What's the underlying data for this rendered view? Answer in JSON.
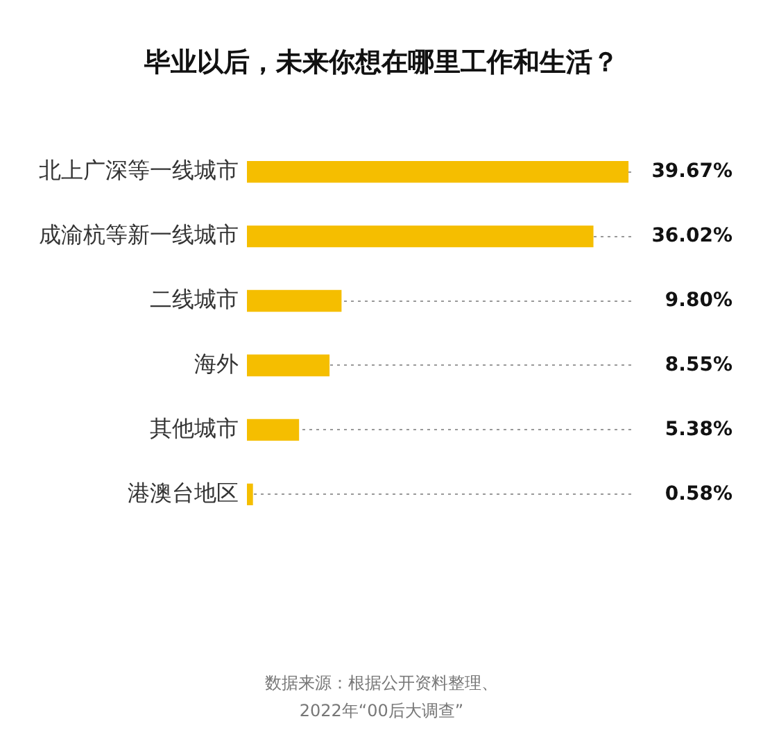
{
  "chart_data": {
    "type": "bar",
    "orientation": "horizontal",
    "title": "毕业以后，未来你想在哪里工作和生活？",
    "categories": [
      "北上广深等一线城市",
      "成渝杭等新一线城市",
      "二线城市",
      "海外",
      "其他城市",
      "港澳台地区"
    ],
    "values": [
      39.67,
      36.02,
      9.8,
      8.55,
      5.38,
      0.58
    ],
    "value_labels": [
      "39.67%",
      "36.02%",
      "9.80%",
      "8.55%",
      "5.38%",
      "0.58%"
    ],
    "color": "#f5be00",
    "grid": "y",
    "annotations": [
      "数据来源：根据公开资料整理、",
      "2022年“00后大调查”"
    ]
  }
}
